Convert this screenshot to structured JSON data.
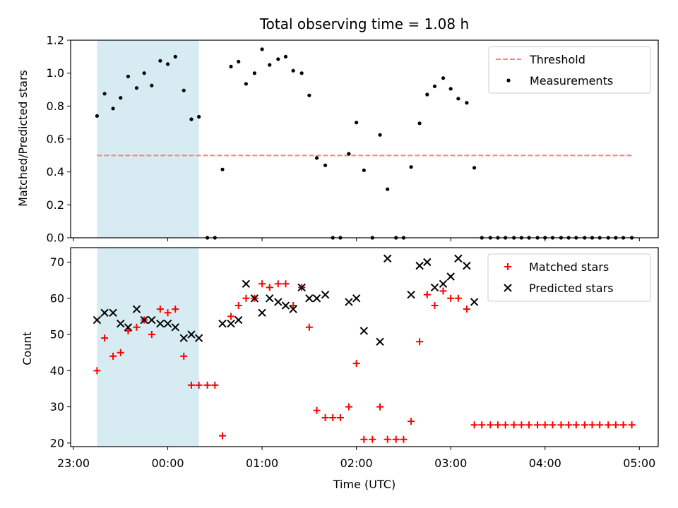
{
  "title": "Total observing time = 1.08 h",
  "chart_data": [
    {
      "type": "scatter",
      "ylabel": "Matched/Predicted stars",
      "xlabel": "",
      "xlim_hours": [
        -1.03,
        5.2
      ],
      "ylim": [
        0,
        1.2
      ],
      "yticks": [
        0.0,
        0.2,
        0.4,
        0.6,
        0.8,
        1.0,
        1.2
      ],
      "ytick_labels": [
        "0.0",
        "0.2",
        "0.4",
        "0.6",
        "0.8",
        "1.0",
        "1.2"
      ],
      "shaded_region_hours": [
        -0.75,
        0.33
      ],
      "shaded_color": "#add8e6",
      "threshold": {
        "label": "Threshold",
        "value": 0.5,
        "x_hours": [
          -0.75,
          4.92
        ],
        "color": "#ff7f7f"
      },
      "legend": {
        "placement": "top-right",
        "entries": [
          "Threshold",
          "Measurements"
        ]
      },
      "series": [
        {
          "name": "Measurements",
          "marker": "dot",
          "color": "#000000",
          "x_hours": [
            -0.75,
            -0.67,
            -0.58,
            -0.5,
            -0.42,
            -0.33,
            -0.25,
            -0.17,
            -0.08,
            0.0,
            0.08,
            0.17,
            0.25,
            0.33,
            0.42,
            0.5,
            0.58,
            0.67,
            0.75,
            0.83,
            0.92,
            1.0,
            1.08,
            1.17,
            1.25,
            1.33,
            1.42,
            1.5,
            1.58,
            1.67,
            1.75,
            1.83,
            1.92,
            2.0,
            2.08,
            2.17,
            2.25,
            2.33,
            2.42,
            2.5,
            2.58,
            2.67,
            2.75,
            2.83,
            2.92,
            3.0,
            3.08,
            3.17,
            3.25,
            3.33,
            3.42,
            3.5,
            3.58,
            3.67,
            3.75,
            3.83,
            3.92,
            4.0,
            4.08,
            4.17,
            4.25,
            4.33,
            4.42,
            4.5,
            4.58,
            4.67,
            4.75,
            4.83,
            4.92
          ],
          "values": [
            0.74,
            0.875,
            0.785,
            0.85,
            0.98,
            0.91,
            1.0,
            0.925,
            1.075,
            1.055,
            1.1,
            0.895,
            0.72,
            0.735,
            0.0,
            0.0,
            0.415,
            1.04,
            1.07,
            0.935,
            1.0,
            1.145,
            1.05,
            1.085,
            1.1,
            1.015,
            1.0,
            0.865,
            0.485,
            0.44,
            0.0,
            0.0,
            0.51,
            0.7,
            0.41,
            0.0,
            0.625,
            0.295,
            0.0,
            0.0,
            0.43,
            0.695,
            0.87,
            0.92,
            0.97,
            0.905,
            0.845,
            0.82,
            0.425,
            0.0,
            0.0,
            0.0,
            0.0,
            0.0,
            0.0,
            0.0,
            0.0,
            0.0,
            0.0,
            0.0,
            0.0,
            0.0,
            0.0,
            0.0,
            0.0,
            0.0,
            0.0,
            0.0,
            0.0
          ]
        }
      ]
    },
    {
      "type": "scatter",
      "ylabel": "Count",
      "xlabel": "Time (UTC)",
      "xlim_hours": [
        -1.03,
        5.2
      ],
      "xticks_hours": [
        -1,
        0,
        1,
        2,
        3,
        4,
        5
      ],
      "xtick_labels": [
        "23:00",
        "00:00",
        "01:00",
        "02:00",
        "03:00",
        "04:00",
        "05:00"
      ],
      "ylim": [
        19,
        74
      ],
      "yticks": [
        20,
        30,
        40,
        50,
        60,
        70
      ],
      "ytick_labels": [
        "20",
        "30",
        "40",
        "50",
        "60",
        "70"
      ],
      "shaded_region_hours": [
        -0.75,
        0.33
      ],
      "shaded_color": "#add8e6",
      "legend": {
        "placement": "top-right",
        "entries": [
          "Matched stars",
          "Predicted stars"
        ]
      },
      "series": [
        {
          "name": "Matched stars",
          "marker": "plus",
          "color": "#ff0000",
          "x_hours": [
            -0.75,
            -0.67,
            -0.58,
            -0.5,
            -0.42,
            -0.33,
            -0.25,
            -0.17,
            -0.08,
            0.0,
            0.08,
            0.17,
            0.25,
            0.33,
            0.42,
            0.5,
            0.58,
            0.67,
            0.75,
            0.83,
            0.92,
            1.0,
            1.08,
            1.17,
            1.25,
            1.33,
            1.42,
            1.5,
            1.58,
            1.67,
            1.75,
            1.83,
            1.92,
            2.0,
            2.08,
            2.17,
            2.25,
            2.33,
            2.42,
            2.5,
            2.58,
            2.67,
            2.75,
            2.83,
            2.92,
            3.0,
            3.08,
            3.17,
            3.25,
            3.33,
            3.42,
            3.5,
            3.58,
            3.67,
            3.75,
            3.83,
            3.92,
            4.0,
            4.08,
            4.17,
            4.25,
            4.33,
            4.42,
            4.5,
            4.58,
            4.67,
            4.75,
            4.83,
            4.92
          ],
          "values": [
            40,
            49,
            44,
            45,
            51,
            52,
            54,
            50,
            57,
            56,
            57,
            44,
            36,
            36,
            36,
            36,
            22,
            55,
            58,
            60,
            60,
            64,
            63,
            64,
            64,
            58,
            63,
            52,
            29,
            27,
            27,
            27,
            30,
            42,
            21,
            21,
            30,
            21,
            21,
            21,
            26,
            48,
            61,
            58,
            62,
            60,
            60,
            57,
            25,
            25,
            25,
            25,
            25,
            25,
            25,
            25,
            25,
            25,
            25,
            25,
            25,
            25,
            25,
            25,
            25,
            25,
            25,
            25,
            25
          ]
        },
        {
          "name": "Predicted stars",
          "marker": "x",
          "color": "#000000",
          "x_hours": [
            -0.75,
            -0.67,
            -0.58,
            -0.5,
            -0.42,
            -0.33,
            -0.25,
            -0.17,
            -0.08,
            0.0,
            0.08,
            0.17,
            0.25,
            0.33,
            0.58,
            0.67,
            0.75,
            0.83,
            0.92,
            1.0,
            1.08,
            1.17,
            1.25,
            1.33,
            1.42,
            1.5,
            1.58,
            1.67,
            1.92,
            2.0,
            2.08,
            2.25,
            2.33,
            2.58,
            2.67,
            2.75,
            2.83,
            2.92,
            3.0,
            3.08,
            3.17,
            3.25
          ],
          "values": [
            54,
            56,
            56,
            53,
            52,
            57,
            54,
            54,
            53,
            53,
            52,
            49,
            50,
            49,
            53,
            53,
            54,
            64,
            60,
            56,
            60,
            59,
            58,
            57,
            63,
            60,
            60,
            61,
            59,
            60,
            51,
            48,
            71,
            61,
            69,
            70,
            63,
            64,
            66,
            71,
            69,
            59
          ]
        }
      ]
    }
  ]
}
